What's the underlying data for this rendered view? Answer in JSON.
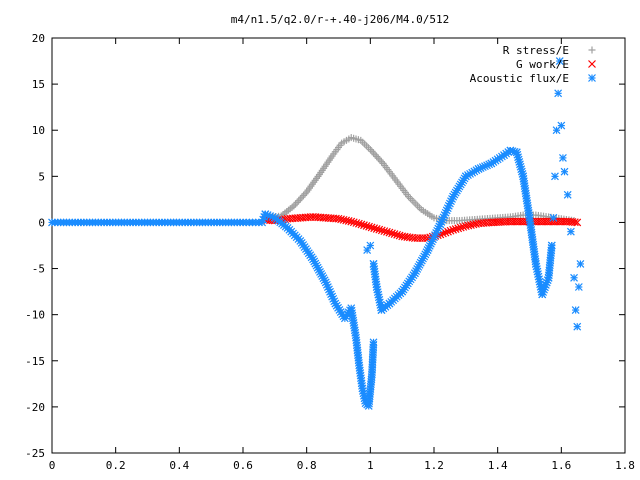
{
  "chart_data": {
    "type": "scatter",
    "title": "m4/n1.5/q2.0/r-+.40-j206/M4.0/512",
    "xlabel": "",
    "ylabel": "",
    "xlim": [
      0,
      1.8
    ],
    "ylim": [
      -25,
      20
    ],
    "grid": false,
    "legend_position": "top-right",
    "x_ticks": [
      "0",
      "0.2",
      "0.4",
      "0.6",
      "0.8",
      "1",
      "1.2",
      "1.4",
      "1.6",
      "1.8"
    ],
    "y_ticks": [
      "20",
      "15",
      "10",
      "5",
      "0",
      "-5",
      "-10",
      "-15",
      "-20",
      "-25"
    ],
    "series": [
      {
        "name": "R stress/E",
        "marker": "plus",
        "color": "#a0a0a0",
        "points": [
          [
            0.67,
            0.5
          ],
          [
            0.72,
            0.7
          ],
          [
            0.76,
            1.8
          ],
          [
            0.8,
            3.3
          ],
          [
            0.84,
            5.2
          ],
          [
            0.88,
            7.2
          ],
          [
            0.91,
            8.6
          ],
          [
            0.94,
            9.2
          ],
          [
            0.97,
            8.9
          ],
          [
            1.0,
            7.9
          ],
          [
            1.04,
            6.4
          ],
          [
            1.08,
            4.6
          ],
          [
            1.12,
            2.8
          ],
          [
            1.16,
            1.4
          ],
          [
            1.2,
            0.5
          ],
          [
            1.24,
            0.2
          ],
          [
            1.28,
            0.2
          ],
          [
            1.32,
            0.3
          ],
          [
            1.36,
            0.4
          ],
          [
            1.4,
            0.5
          ],
          [
            1.44,
            0.6
          ],
          [
            1.48,
            0.8
          ],
          [
            1.52,
            0.8
          ],
          [
            1.56,
            0.6
          ],
          [
            1.6,
            0.4
          ],
          [
            1.64,
            0.2
          ]
        ]
      },
      {
        "name": "G work/E",
        "marker": "cross",
        "color": "#ff0000",
        "points": [
          [
            0.67,
            0.3
          ],
          [
            0.7,
            0.2
          ],
          [
            0.74,
            0.4
          ],
          [
            0.78,
            0.5
          ],
          [
            0.82,
            0.6
          ],
          [
            0.86,
            0.5
          ],
          [
            0.9,
            0.4
          ],
          [
            0.94,
            0.1
          ],
          [
            0.98,
            -0.3
          ],
          [
            1.02,
            -0.7
          ],
          [
            1.06,
            -1.1
          ],
          [
            1.1,
            -1.5
          ],
          [
            1.14,
            -1.7
          ],
          [
            1.18,
            -1.7
          ],
          [
            1.22,
            -1.3
          ],
          [
            1.26,
            -0.8
          ],
          [
            1.3,
            -0.4
          ],
          [
            1.34,
            -0.1
          ],
          [
            1.38,
            0.0
          ],
          [
            1.44,
            0.1
          ],
          [
            1.5,
            0.1
          ],
          [
            1.56,
            0.1
          ],
          [
            1.62,
            0.1
          ],
          [
            1.65,
            0.0
          ]
        ]
      },
      {
        "name": "Acoustic flux/E",
        "marker": "star",
        "color": "#1a8cff",
        "points": [
          [
            0.0,
            0.0
          ],
          [
            0.1,
            0.0
          ],
          [
            0.2,
            0.0
          ],
          [
            0.3,
            0.0
          ],
          [
            0.4,
            0.0
          ],
          [
            0.5,
            0.0
          ],
          [
            0.6,
            0.0
          ],
          [
            0.66,
            0.0
          ],
          [
            0.67,
            0.9
          ],
          [
            0.7,
            0.5
          ],
          [
            0.74,
            -0.6
          ],
          [
            0.78,
            -2.0
          ],
          [
            0.82,
            -4.0
          ],
          [
            0.86,
            -6.5
          ],
          [
            0.89,
            -8.8
          ],
          [
            0.92,
            -10.4
          ],
          [
            0.94,
            -9.3
          ],
          [
            0.955,
            -12.5
          ],
          [
            0.965,
            -15.5
          ],
          [
            0.975,
            -18.0
          ],
          [
            0.985,
            -19.6
          ],
          [
            0.995,
            -19.9
          ],
          [
            1.005,
            -16.5
          ],
          [
            1.01,
            -13.0
          ],
          [
            0.99,
            -3.0
          ],
          [
            1.0,
            -2.5
          ],
          [
            1.01,
            -4.5
          ],
          [
            1.02,
            -7.0
          ],
          [
            1.035,
            -9.5
          ],
          [
            1.06,
            -8.8
          ],
          [
            1.1,
            -7.5
          ],
          [
            1.14,
            -5.5
          ],
          [
            1.18,
            -3.0
          ],
          [
            1.22,
            -0.2
          ],
          [
            1.26,
            2.8
          ],
          [
            1.3,
            5.0
          ],
          [
            1.34,
            5.8
          ],
          [
            1.38,
            6.4
          ],
          [
            1.42,
            7.3
          ],
          [
            1.44,
            7.8
          ],
          [
            1.46,
            7.6
          ],
          [
            1.48,
            5.0
          ],
          [
            1.5,
            0.5
          ],
          [
            1.52,
            -4.5
          ],
          [
            1.54,
            -7.8
          ],
          [
            1.56,
            -6.0
          ],
          [
            1.57,
            -2.5
          ],
          [
            1.575,
            0.5
          ],
          [
            1.58,
            5.0
          ],
          [
            1.585,
            10.0
          ],
          [
            1.59,
            14.0
          ],
          [
            1.595,
            17.5
          ],
          [
            1.6,
            10.5
          ],
          [
            1.605,
            7.0
          ],
          [
            1.61,
            5.5
          ],
          [
            1.62,
            3.0
          ],
          [
            1.63,
            -1.0
          ],
          [
            1.64,
            -6.0
          ],
          [
            1.645,
            -9.5
          ],
          [
            1.65,
            -11.3
          ],
          [
            1.655,
            -7.0
          ],
          [
            1.66,
            -4.5
          ]
        ]
      }
    ]
  }
}
